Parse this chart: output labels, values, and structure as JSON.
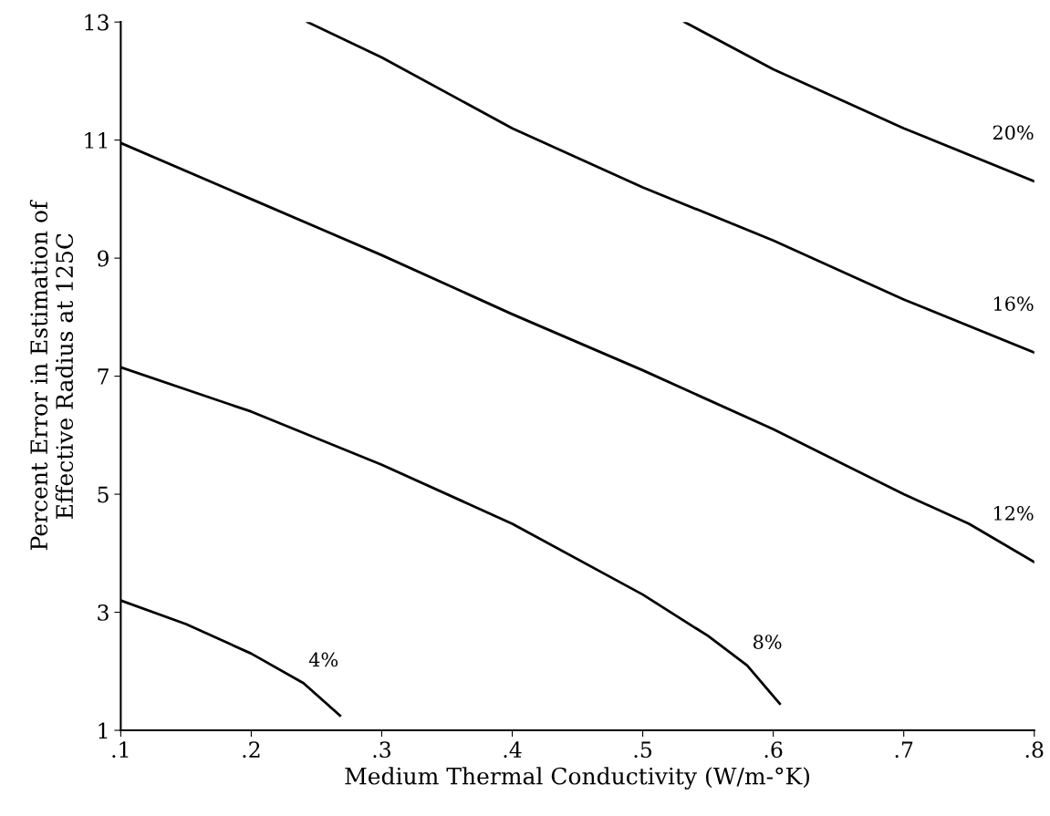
{
  "chart_data": {
    "type": "line",
    "xlabel": "Medium Thermal Conductivity (W/m-°K)",
    "ylabel": "Percent Error in Estimation of\nEffective Radius at 125C",
    "xlim": [
      0.1,
      0.8
    ],
    "ylim": [
      1,
      13
    ],
    "xticks": [
      {
        "value": 0.1,
        "label": ".1"
      },
      {
        "value": 0.2,
        "label": ".2"
      },
      {
        "value": 0.3,
        "label": ".3"
      },
      {
        "value": 0.4,
        "label": ".4"
      },
      {
        "value": 0.5,
        "label": ".5"
      },
      {
        "value": 0.6,
        "label": ".6"
      },
      {
        "value": 0.7,
        "label": ".7"
      },
      {
        "value": 0.8,
        "label": ".8"
      }
    ],
    "yticks": [
      1,
      3,
      5,
      7,
      9,
      11,
      13
    ],
    "grid": false,
    "marker": "none",
    "line_style": "solid",
    "series": [
      {
        "name": "4%",
        "color": "#000000",
        "x": [
          0.1,
          0.15,
          0.2,
          0.24,
          0.268
        ],
        "values": [
          3.2,
          2.8,
          2.3,
          1.8,
          1.25
        ]
      },
      {
        "name": "8%",
        "color": "#000000",
        "x": [
          0.1,
          0.2,
          0.3,
          0.4,
          0.5,
          0.55,
          0.58,
          0.605
        ],
        "values": [
          7.15,
          6.4,
          5.5,
          4.5,
          3.3,
          2.6,
          2.1,
          1.45
        ]
      },
      {
        "name": "12%",
        "color": "#000000",
        "x": [
          0.1,
          0.2,
          0.3,
          0.4,
          0.5,
          0.6,
          0.7,
          0.75,
          0.8
        ],
        "values": [
          10.95,
          10.0,
          9.05,
          8.05,
          7.1,
          6.1,
          5.0,
          4.5,
          3.85
        ]
      },
      {
        "name": "16%",
        "color": "#000000",
        "x": [
          0.243,
          0.3,
          0.4,
          0.5,
          0.6,
          0.7,
          0.8
        ],
        "values": [
          13,
          12.4,
          11.2,
          10.2,
          9.3,
          8.3,
          7.4
        ]
      },
      {
        "name": "20%",
        "color": "#000000",
        "x": [
          0.532,
          0.6,
          0.7,
          0.8
        ],
        "values": [
          13,
          12.2,
          11.2,
          10.3
        ]
      }
    ]
  }
}
